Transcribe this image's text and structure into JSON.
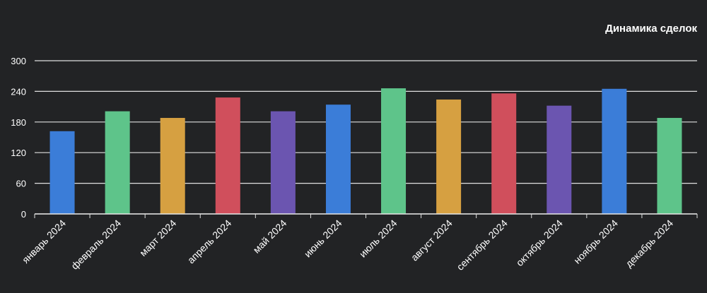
{
  "chart_data": {
    "type": "bar",
    "title": "Динамика сделок",
    "categories": [
      "январь 2024",
      "февраль 2024",
      "март 2024",
      "апрель 2024",
      "май 2024",
      "июнь 2024",
      "июль 2024",
      "август 2024",
      "сентябрь 2024",
      "октябрь 2024",
      "ноябрь 2024",
      "декабрь 2024"
    ],
    "values": [
      162,
      201,
      188,
      228,
      201,
      214,
      246,
      224,
      236,
      212,
      245,
      188
    ],
    "colors": [
      "#3b7dd8",
      "#5ec48a",
      "#d6a041",
      "#d04f5c",
      "#6b55b0",
      "#3b7dd8",
      "#5ec48a",
      "#d6a041",
      "#d04f5c",
      "#6b55b0",
      "#3b7dd8",
      "#5ec48a"
    ],
    "ylim": [
      0,
      300
    ],
    "yticks": [
      "0",
      "60",
      "120",
      "180",
      "240",
      "300"
    ],
    "grid": true,
    "xlabel": "",
    "ylabel": ""
  }
}
